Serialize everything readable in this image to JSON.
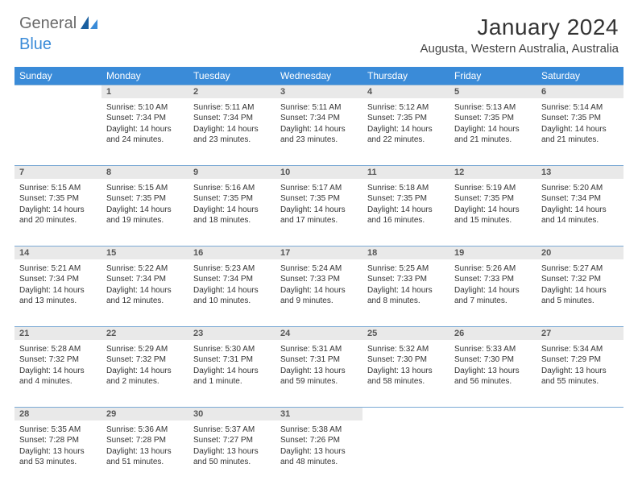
{
  "brand": {
    "part1": "General",
    "part2": "Blue"
  },
  "title": "January 2024",
  "location": "Augusta, Western Australia, Australia",
  "colors": {
    "header_bg": "#3a8bd8",
    "header_text": "#ffffff",
    "daynum_bg": "#e9e9e9",
    "rule": "#7aa9d4",
    "body_text": "#333333"
  },
  "weekdays": [
    "Sunday",
    "Monday",
    "Tuesday",
    "Wednesday",
    "Thursday",
    "Friday",
    "Saturday"
  ],
  "weeks": [
    [
      null,
      {
        "n": "1",
        "sr": "5:10 AM",
        "ss": "7:34 PM",
        "dl": "14 hours and 24 minutes."
      },
      {
        "n": "2",
        "sr": "5:11 AM",
        "ss": "7:34 PM",
        "dl": "14 hours and 23 minutes."
      },
      {
        "n": "3",
        "sr": "5:11 AM",
        "ss": "7:34 PM",
        "dl": "14 hours and 23 minutes."
      },
      {
        "n": "4",
        "sr": "5:12 AM",
        "ss": "7:35 PM",
        "dl": "14 hours and 22 minutes."
      },
      {
        "n": "5",
        "sr": "5:13 AM",
        "ss": "7:35 PM",
        "dl": "14 hours and 21 minutes."
      },
      {
        "n": "6",
        "sr": "5:14 AM",
        "ss": "7:35 PM",
        "dl": "14 hours and 21 minutes."
      }
    ],
    [
      {
        "n": "7",
        "sr": "5:15 AM",
        "ss": "7:35 PM",
        "dl": "14 hours and 20 minutes."
      },
      {
        "n": "8",
        "sr": "5:15 AM",
        "ss": "7:35 PM",
        "dl": "14 hours and 19 minutes."
      },
      {
        "n": "9",
        "sr": "5:16 AM",
        "ss": "7:35 PM",
        "dl": "14 hours and 18 minutes."
      },
      {
        "n": "10",
        "sr": "5:17 AM",
        "ss": "7:35 PM",
        "dl": "14 hours and 17 minutes."
      },
      {
        "n": "11",
        "sr": "5:18 AM",
        "ss": "7:35 PM",
        "dl": "14 hours and 16 minutes."
      },
      {
        "n": "12",
        "sr": "5:19 AM",
        "ss": "7:35 PM",
        "dl": "14 hours and 15 minutes."
      },
      {
        "n": "13",
        "sr": "5:20 AM",
        "ss": "7:34 PM",
        "dl": "14 hours and 14 minutes."
      }
    ],
    [
      {
        "n": "14",
        "sr": "5:21 AM",
        "ss": "7:34 PM",
        "dl": "14 hours and 13 minutes."
      },
      {
        "n": "15",
        "sr": "5:22 AM",
        "ss": "7:34 PM",
        "dl": "14 hours and 12 minutes."
      },
      {
        "n": "16",
        "sr": "5:23 AM",
        "ss": "7:34 PM",
        "dl": "14 hours and 10 minutes."
      },
      {
        "n": "17",
        "sr": "5:24 AM",
        "ss": "7:33 PM",
        "dl": "14 hours and 9 minutes."
      },
      {
        "n": "18",
        "sr": "5:25 AM",
        "ss": "7:33 PM",
        "dl": "14 hours and 8 minutes."
      },
      {
        "n": "19",
        "sr": "5:26 AM",
        "ss": "7:33 PM",
        "dl": "14 hours and 7 minutes."
      },
      {
        "n": "20",
        "sr": "5:27 AM",
        "ss": "7:32 PM",
        "dl": "14 hours and 5 minutes."
      }
    ],
    [
      {
        "n": "21",
        "sr": "5:28 AM",
        "ss": "7:32 PM",
        "dl": "14 hours and 4 minutes."
      },
      {
        "n": "22",
        "sr": "5:29 AM",
        "ss": "7:32 PM",
        "dl": "14 hours and 2 minutes."
      },
      {
        "n": "23",
        "sr": "5:30 AM",
        "ss": "7:31 PM",
        "dl": "14 hours and 1 minute."
      },
      {
        "n": "24",
        "sr": "5:31 AM",
        "ss": "7:31 PM",
        "dl": "13 hours and 59 minutes."
      },
      {
        "n": "25",
        "sr": "5:32 AM",
        "ss": "7:30 PM",
        "dl": "13 hours and 58 minutes."
      },
      {
        "n": "26",
        "sr": "5:33 AM",
        "ss": "7:30 PM",
        "dl": "13 hours and 56 minutes."
      },
      {
        "n": "27",
        "sr": "5:34 AM",
        "ss": "7:29 PM",
        "dl": "13 hours and 55 minutes."
      }
    ],
    [
      {
        "n": "28",
        "sr": "5:35 AM",
        "ss": "7:28 PM",
        "dl": "13 hours and 53 minutes."
      },
      {
        "n": "29",
        "sr": "5:36 AM",
        "ss": "7:28 PM",
        "dl": "13 hours and 51 minutes."
      },
      {
        "n": "30",
        "sr": "5:37 AM",
        "ss": "7:27 PM",
        "dl": "13 hours and 50 minutes."
      },
      {
        "n": "31",
        "sr": "5:38 AM",
        "ss": "7:26 PM",
        "dl": "13 hours and 48 minutes."
      },
      null,
      null,
      null
    ]
  ]
}
